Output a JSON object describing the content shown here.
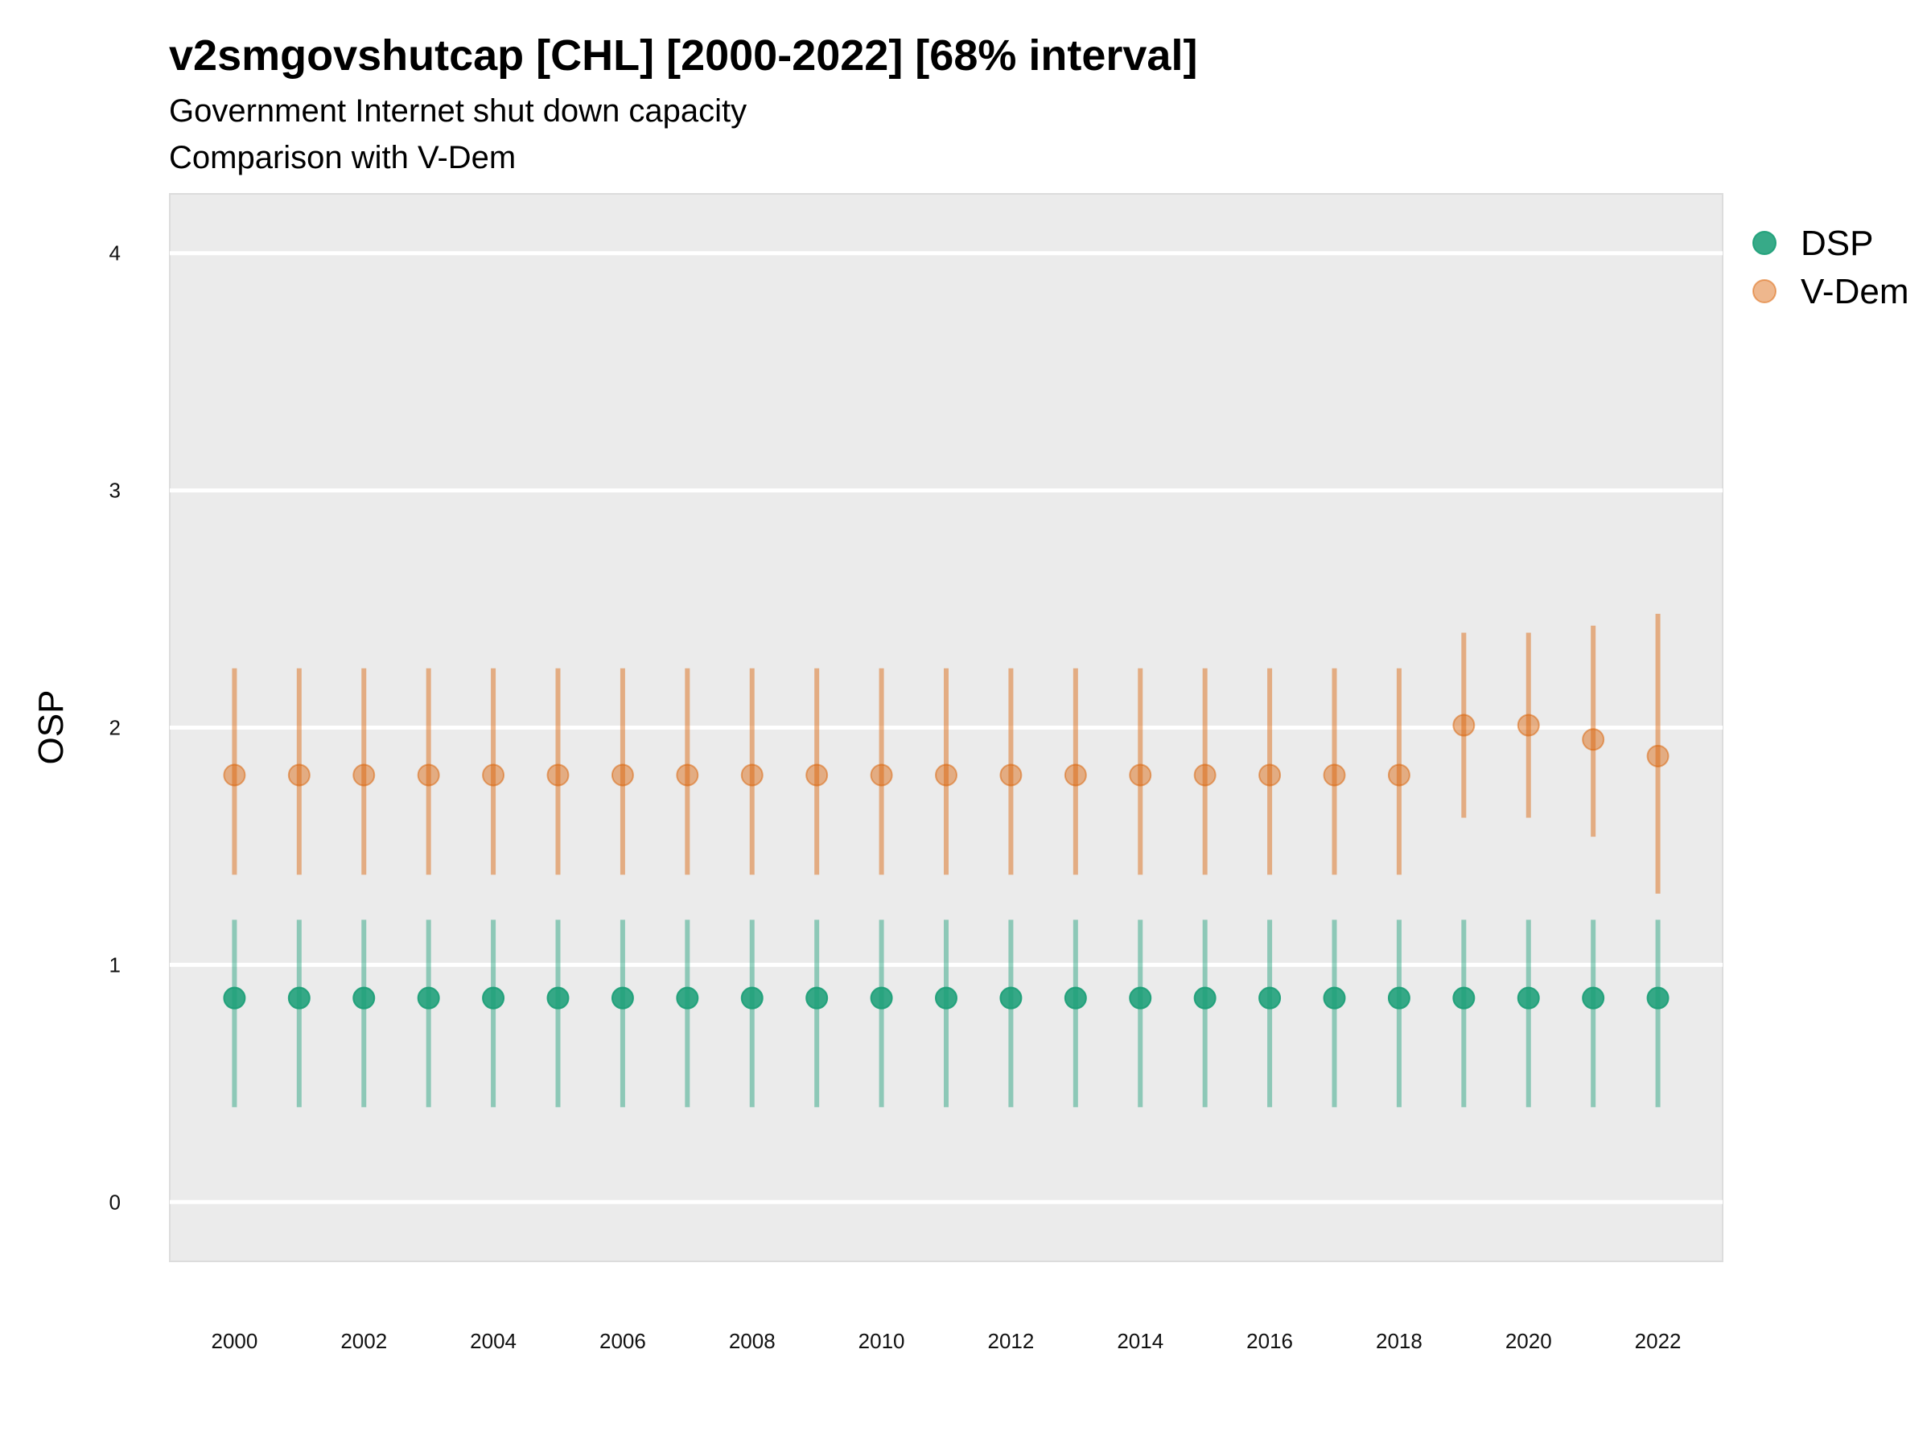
{
  "title": "v2smgovshutcap [CHL] [2000-2022] [68% interval]",
  "subtitle": "Government Internet shut down capacity",
  "subtitle2": "Comparison with V-Dem",
  "chart_data": {
    "type": "scatter",
    "title": "v2smgovshutcap [CHL] [2000-2022] [68% interval]",
    "subtitle": "Government Internet shut down capacity",
    "xlabel": "",
    "ylabel": "OSP",
    "xlim": [
      1999.0,
      2023.0
    ],
    "ylim": [
      -0.25,
      4.25
    ],
    "x_ticks": [
      2000,
      2002,
      2004,
      2006,
      2008,
      2010,
      2012,
      2014,
      2016,
      2018,
      2020,
      2022
    ],
    "y_ticks": [
      0,
      1,
      2,
      3,
      4
    ],
    "grid": true,
    "legend_position": "right",
    "x": [
      2000,
      2001,
      2002,
      2003,
      2004,
      2005,
      2006,
      2007,
      2008,
      2009,
      2010,
      2011,
      2012,
      2013,
      2014,
      2015,
      2016,
      2017,
      2018,
      2019,
      2020,
      2021,
      2022
    ],
    "series": [
      {
        "name": "DSP",
        "color": "#1b9e77",
        "values": [
          0.86,
          0.86,
          0.86,
          0.86,
          0.86,
          0.86,
          0.86,
          0.86,
          0.86,
          0.86,
          0.86,
          0.86,
          0.86,
          0.86,
          0.86,
          0.86,
          0.86,
          0.86,
          0.86,
          0.86,
          0.86,
          0.86,
          0.86
        ],
        "lower": [
          0.4,
          0.4,
          0.4,
          0.4,
          0.4,
          0.4,
          0.4,
          0.4,
          0.4,
          0.4,
          0.4,
          0.4,
          0.4,
          0.4,
          0.4,
          0.4,
          0.4,
          0.4,
          0.4,
          0.4,
          0.4,
          0.4,
          0.4
        ],
        "upper": [
          1.19,
          1.19,
          1.19,
          1.19,
          1.19,
          1.19,
          1.19,
          1.19,
          1.19,
          1.19,
          1.19,
          1.19,
          1.19,
          1.19,
          1.19,
          1.19,
          1.19,
          1.19,
          1.19,
          1.19,
          1.19,
          1.19,
          1.19
        ]
      },
      {
        "name": "V-Dem",
        "color": "#d95f02",
        "values": [
          1.8,
          1.8,
          1.8,
          1.8,
          1.8,
          1.8,
          1.8,
          1.8,
          1.8,
          1.8,
          1.8,
          1.8,
          1.8,
          1.8,
          1.8,
          1.8,
          1.8,
          1.8,
          1.8,
          2.01,
          2.01,
          1.95,
          1.88
        ],
        "lower": [
          1.38,
          1.38,
          1.38,
          1.38,
          1.38,
          1.38,
          1.38,
          1.38,
          1.38,
          1.38,
          1.38,
          1.38,
          1.38,
          1.38,
          1.38,
          1.38,
          1.38,
          1.38,
          1.38,
          1.62,
          1.62,
          1.54,
          1.3
        ],
        "upper": [
          2.25,
          2.25,
          2.25,
          2.25,
          2.25,
          2.25,
          2.25,
          2.25,
          2.25,
          2.25,
          2.25,
          2.25,
          2.25,
          2.25,
          2.25,
          2.25,
          2.25,
          2.25,
          2.25,
          2.4,
          2.4,
          2.43,
          2.48
        ]
      }
    ]
  }
}
